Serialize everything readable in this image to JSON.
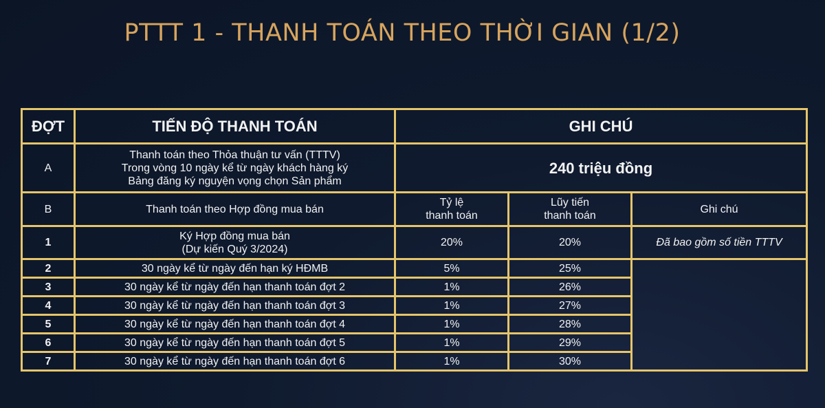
{
  "title": "PTTT 1 - THANH TOÁN THEO THỜI GIAN (1/2)",
  "header": {
    "col1": "ĐỢT",
    "col2": "TIẾN ĐỘ THANH TOÁN",
    "col3": "GHI CHÚ"
  },
  "row_a": {
    "dot": "A",
    "lines": [
      "Thanh toán theo Thỏa thuận tư vấn (TTTV)",
      "Trong vòng 10 ngày kể từ ngày khách hàng ký",
      "Bảng đăng ký nguyện vọng chọn Sản phẩm"
    ],
    "note": "240 triệu đồng"
  },
  "row_b": {
    "dot": "B",
    "label": "Thanh toán theo Hợp đồng mua bán",
    "rate_lines": [
      "Tỷ lệ",
      "thanh toán"
    ],
    "cum_lines": [
      "Lũy tiến",
      "thanh toán"
    ],
    "note": "Ghi chú"
  },
  "row_1": {
    "dot": "1",
    "lines": [
      "Ký Hợp đồng mua bán",
      "(Dự kiến Quý 3/2024)"
    ],
    "rate": "20%",
    "cum": "20%",
    "note": "Đã bao gồm số tiền TTTV"
  },
  "rows": [
    {
      "dot": "2",
      "label": "30 ngày kể từ ngày đến hạn ký HĐMB",
      "rate": "5%",
      "cum": "25%"
    },
    {
      "dot": "3",
      "label": "30 ngày kể từ ngày đến hạn thanh toán đợt 2",
      "rate": "1%",
      "cum": "26%"
    },
    {
      "dot": "4",
      "label": "30 ngày kể từ ngày đến hạn thanh toán đợt 3",
      "rate": "1%",
      "cum": "27%"
    },
    {
      "dot": "5",
      "label": "30 ngày kể từ ngày đến hạn thanh toán đợt 4",
      "rate": "1%",
      "cum": "28%"
    },
    {
      "dot": "6",
      "label": "30 ngày kể từ ngày đến hạn thanh toán đợt 5",
      "rate": "1%",
      "cum": "29%"
    },
    {
      "dot": "7",
      "label": "30 ngày kể từ ngày đến hạn thanh toán đợt 6",
      "rate": "1%",
      "cum": "30%"
    }
  ],
  "colors": {
    "background": "#0f1a2e",
    "title": "#d7a45e",
    "border": "#e6c56a"
  }
}
